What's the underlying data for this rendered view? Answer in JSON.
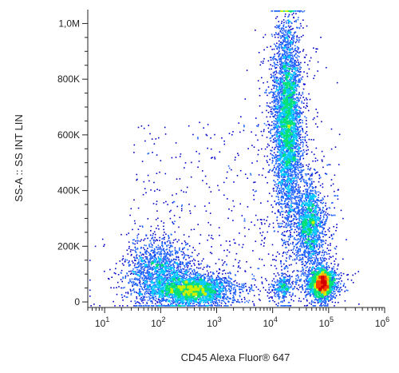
{
  "chart_data": {
    "type": "scatter",
    "subtype": "flow-cytometry-density-dot-plot",
    "xlabel": "CD45 Alexa Fluor® 647",
    "ylabel": "SS-A :: SS INT LIN",
    "x_scale": "log",
    "y_scale": "linear",
    "xlim": [
      5,
      1000000
    ],
    "ylim": [
      -20000,
      1050000
    ],
    "x_ticks": [
      {
        "value": 10,
        "base": "10",
        "exp": "1"
      },
      {
        "value": 100,
        "base": "10",
        "exp": "2"
      },
      {
        "value": 1000,
        "base": "10",
        "exp": "3"
      },
      {
        "value": 10000,
        "base": "10",
        "exp": "4"
      },
      {
        "value": 100000,
        "base": "10",
        "exp": "5"
      },
      {
        "value": 1000000,
        "base": "10",
        "exp": "6"
      }
    ],
    "y_ticks": [
      {
        "value": 0,
        "label": "0"
      },
      {
        "value": 200000,
        "label": "200K"
      },
      {
        "value": 400000,
        "label": "400K"
      },
      {
        "value": 600000,
        "label": "600K"
      },
      {
        "value": 800000,
        "label": "800K"
      },
      {
        "value": 1000000,
        "label": "1,0M"
      }
    ],
    "populations": [
      {
        "x_center": 350,
        "y_center": 45000,
        "x_spread_decades": 0.32,
        "y_spread": 25000,
        "count": 2600,
        "peak": "high"
      },
      {
        "x_center": 90,
        "y_center": 110000,
        "x_spread_decades": 0.28,
        "y_spread": 60000,
        "count": 1500,
        "peak": "medium"
      },
      {
        "x_center": 18000,
        "y_center": 650000,
        "x_spread_decades": 0.12,
        "y_spread": 170000,
        "count": 4200,
        "peak": "high"
      },
      {
        "x_center": 45000,
        "y_center": 280000,
        "x_spread_decades": 0.12,
        "y_spread": 70000,
        "count": 1600,
        "peak": "medium"
      },
      {
        "x_center": 75000,
        "y_center": 70000,
        "x_spread_decades": 0.1,
        "y_spread": 25000,
        "count": 2200,
        "peak": "high"
      },
      {
        "x_center": 15000,
        "y_center": 60000,
        "x_spread_decades": 0.08,
        "y_spread": 18000,
        "count": 250,
        "peak": "low"
      }
    ],
    "colormap": [
      "#0000c8",
      "#1e64ff",
      "#00c8ff",
      "#00e078",
      "#c8f000",
      "#ffb400",
      "#ff3c00",
      "#d20000"
    ],
    "grid": false,
    "legend": "none"
  }
}
